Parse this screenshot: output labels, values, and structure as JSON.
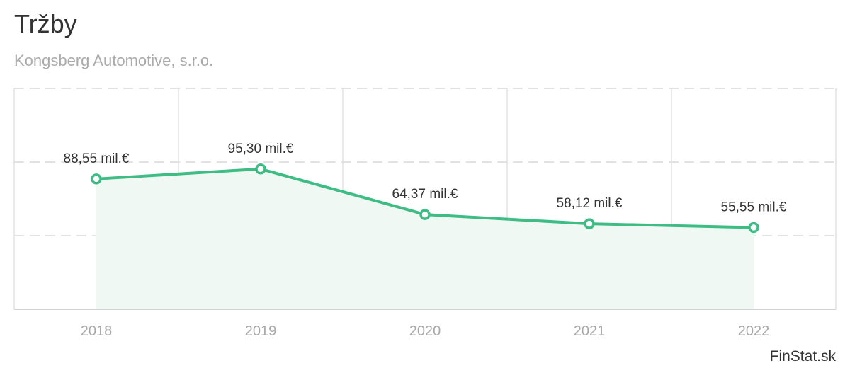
{
  "header": {
    "title": "Tržby",
    "subtitle": "Kongsberg Automotive, s.r.o."
  },
  "credit": "FinStat.sk",
  "colors": {
    "line": "#3dbd84",
    "area": "#eff8f3",
    "grid": "#e2e2e2",
    "axis": "#d4d4d4"
  },
  "chart_data": {
    "type": "area",
    "title": "Tržby",
    "subtitle": "Kongsberg Automotive, s.r.o.",
    "categories": [
      "2018",
      "2019",
      "2020",
      "2021",
      "2022"
    ],
    "values": [
      88.55,
      95.3,
      64.37,
      58.12,
      55.55
    ],
    "data_labels": [
      "88,55 mil.€",
      "95,30 mil.€",
      "64,37 mil.€",
      "58,12 mil.€",
      "55,55 mil.€"
    ],
    "unit": "mil.€",
    "xlabel": "",
    "ylabel": "",
    "ylim": [
      0,
      150
    ],
    "y_gridlines": [
      0,
      50,
      100,
      150
    ],
    "y_tick_labels_visible": false,
    "grid": true,
    "legend": "none"
  }
}
